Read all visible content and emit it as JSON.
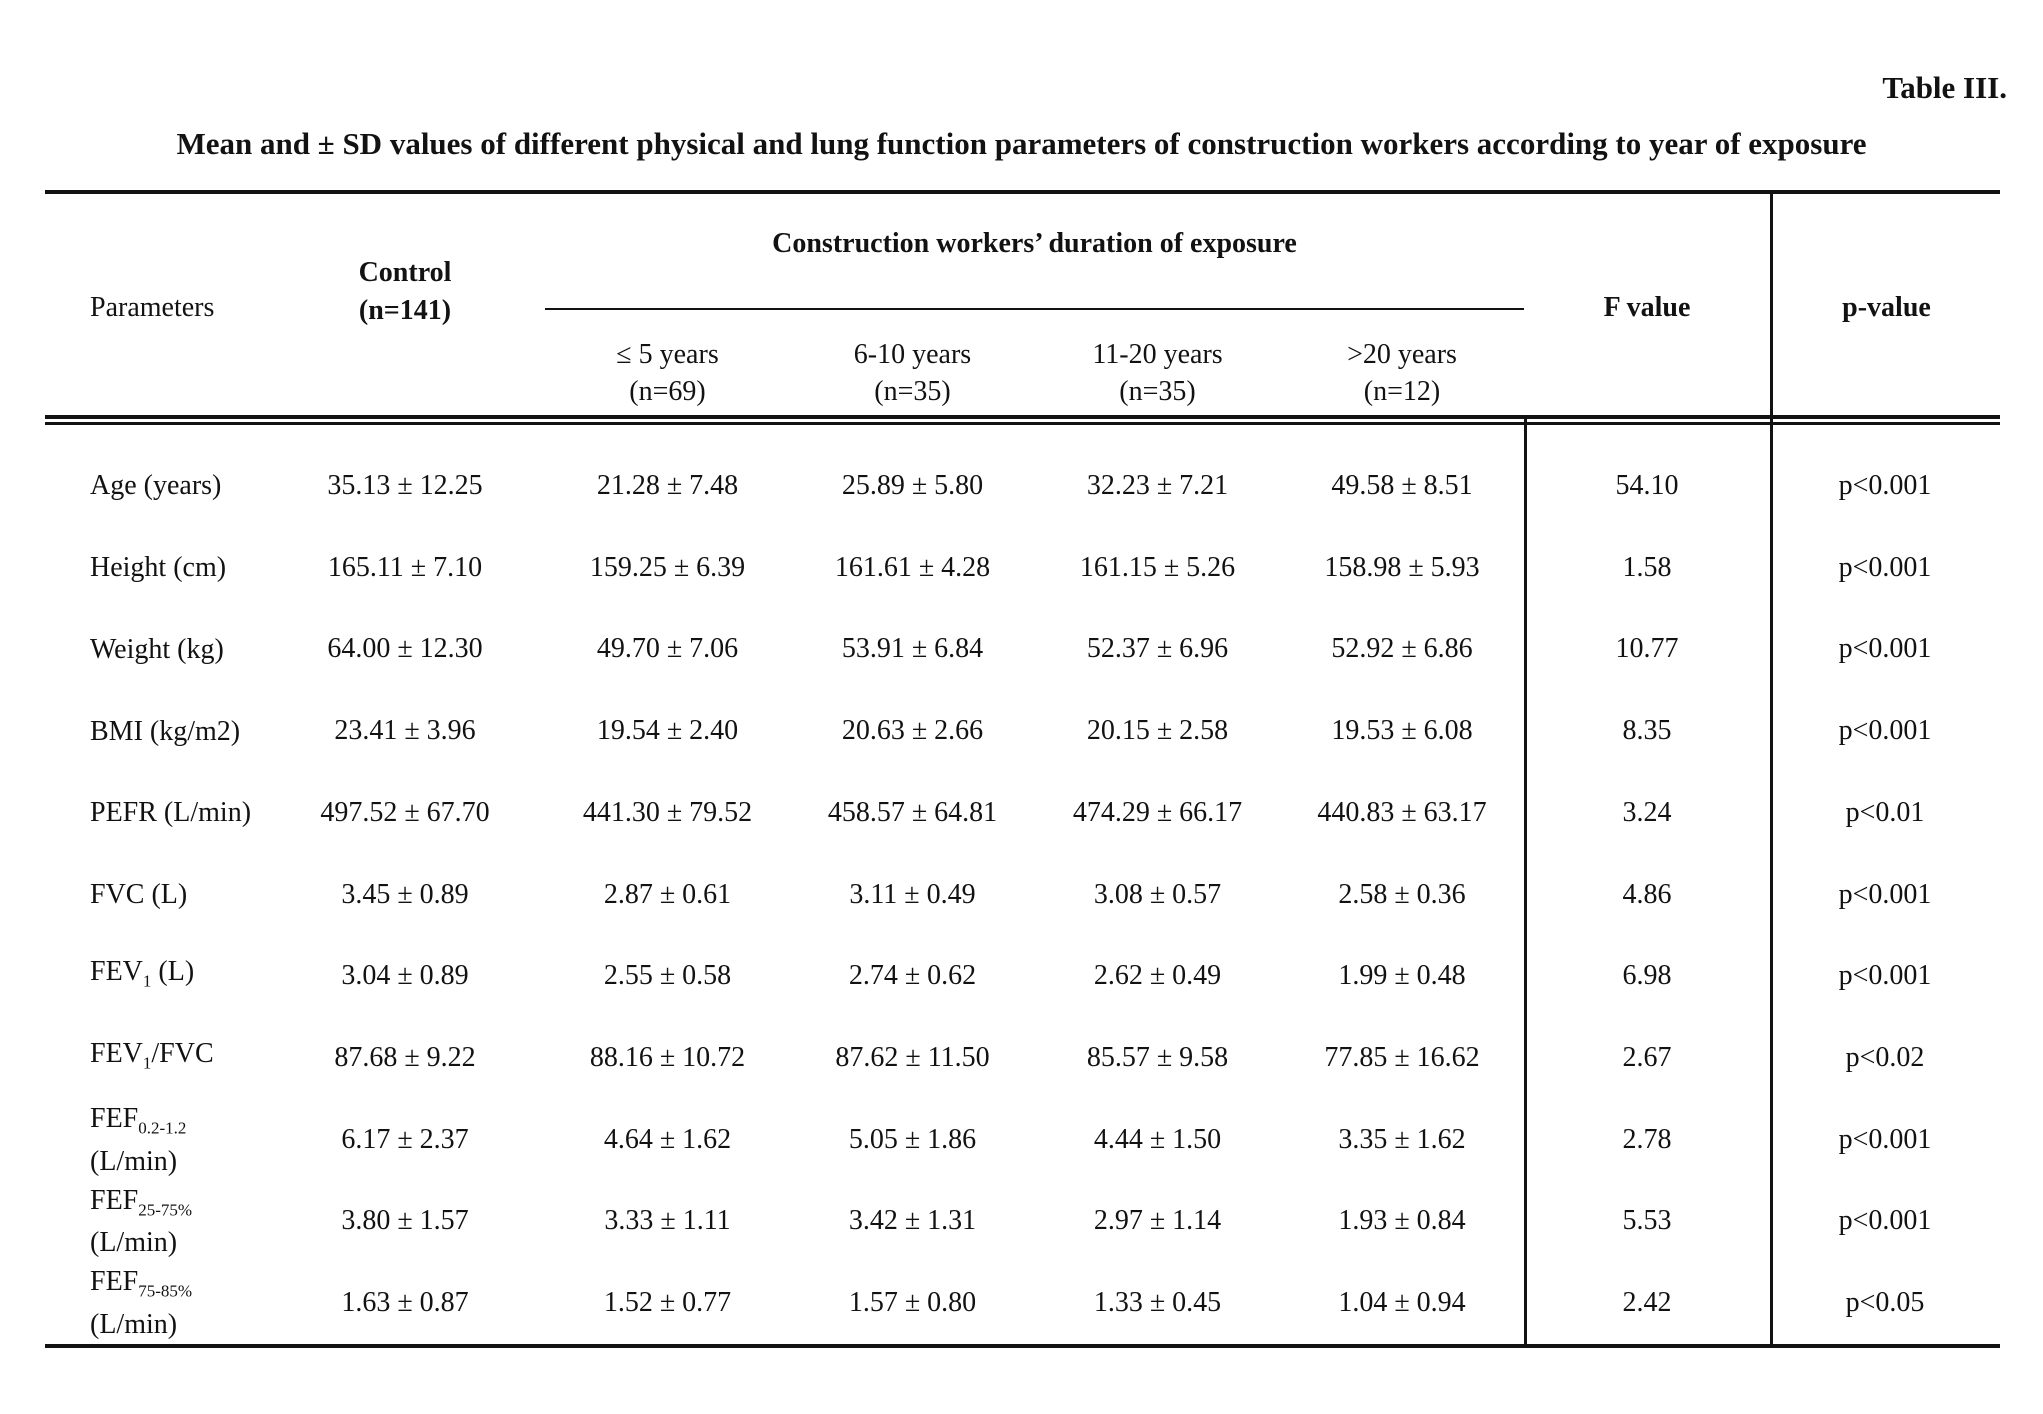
{
  "page": {
    "title": "Table III.",
    "subtitle": "Mean and ± SD values of different physical and lung function parameters of construction workers according to year of exposure"
  },
  "table": {
    "header": {
      "parameters": "Parameters",
      "control_line1": "Control",
      "control_line2": "(n=141)",
      "spanner": "Construction workers’ duration of exposure",
      "groups": [
        {
          "line1": "≤ 5 years",
          "line2": "(n=69)"
        },
        {
          "line1": "6-10 years",
          "line2": "(n=35)"
        },
        {
          "line1": "11-20 years",
          "line2": "(n=35)"
        },
        {
          "line1": ">20 years",
          "line2": "(n=12)"
        }
      ],
      "f_value": "F value",
      "p_value": "p-value"
    },
    "rows": [
      {
        "param": {
          "pre": "Age (years)",
          "sub": "",
          "post": "",
          "line2": ""
        },
        "control": "35.13 ± 12.25",
        "groups": [
          "21.28 ± 7.48",
          "25.89 ± 5.80",
          "32.23 ± 7.21",
          "49.58 ± 8.51"
        ],
        "f": "54.10",
        "p": "p<0.001"
      },
      {
        "param": {
          "pre": "Height (cm)",
          "sub": "",
          "post": "",
          "line2": ""
        },
        "control": "165.11 ± 7.10",
        "groups": [
          "159.25 ± 6.39",
          "161.61 ± 4.28",
          "161.15 ± 5.26",
          "158.98 ± 5.93"
        ],
        "f": "1.58",
        "p": "p<0.001"
      },
      {
        "param": {
          "pre": "Weight (kg)",
          "sub": "",
          "post": "",
          "line2": ""
        },
        "control": "64.00 ± 12.30",
        "groups": [
          "49.70 ± 7.06",
          "53.91 ± 6.84",
          "52.37 ± 6.96",
          "52.92 ± 6.86"
        ],
        "f": "10.77",
        "p": "p<0.001"
      },
      {
        "param": {
          "pre": "BMI (kg/m2)",
          "sub": "",
          "post": "",
          "line2": ""
        },
        "control": "23.41 ± 3.96",
        "groups": [
          "19.54 ± 2.40",
          "20.63 ± 2.66",
          "20.15 ± 2.58",
          "19.53 ± 6.08"
        ],
        "f": "8.35",
        "p": "p<0.001"
      },
      {
        "param": {
          "pre": "PEFR (L/min)",
          "sub": "",
          "post": "",
          "line2": ""
        },
        "control": "497.52 ± 67.70",
        "groups": [
          "441.30 ± 79.52",
          "458.57 ± 64.81",
          "474.29 ± 66.17",
          "440.83 ± 63.17"
        ],
        "f": "3.24",
        "p": "p<0.01"
      },
      {
        "param": {
          "pre": "FVC (L)",
          "sub": "",
          "post": "",
          "line2": ""
        },
        "control": "3.45 ± 0.89",
        "groups": [
          "2.87 ± 0.61",
          "3.11 ± 0.49",
          "3.08 ± 0.57",
          "2.58 ± 0.36"
        ],
        "f": "4.86",
        "p": "p<0.001"
      },
      {
        "param": {
          "pre": "FEV",
          "sub": "1",
          "post": " (L)",
          "line2": ""
        },
        "control": "3.04 ± 0.89",
        "groups": [
          "2.55 ± 0.58",
          "2.74 ± 0.62",
          "2.62 ± 0.49",
          "1.99 ± 0.48"
        ],
        "f": "6.98",
        "p": "p<0.001"
      },
      {
        "param": {
          "pre": "FEV",
          "sub": "1",
          "post": "/FVC",
          "line2": ""
        },
        "control": "87.68 ± 9.22",
        "groups": [
          "88.16 ± 10.72",
          "87.62 ± 11.50",
          "85.57 ± 9.58",
          "77.85 ± 16.62"
        ],
        "f": "2.67",
        "p": "p<0.02"
      },
      {
        "param": {
          "pre": "FEF",
          "sub": "0.2-1.2",
          "post": " (L/min)",
          "line2": ""
        },
        "control": "6.17 ± 2.37",
        "groups": [
          "4.64 ± 1.62",
          "5.05 ± 1.86",
          "4.44 ± 1.50",
          "3.35 ± 1.62"
        ],
        "f": "2.78",
        "p": "p<0.001"
      },
      {
        "param": {
          "pre": "FEF",
          "sub": "25-75%",
          "post": "",
          "line2": "(L/min)"
        },
        "control": "3.80 ± 1.57",
        "groups": [
          "3.33 ± 1.11",
          "3.42 ± 1.31",
          "2.97 ± 1.14",
          "1.93 ± 0.84"
        ],
        "f": "5.53",
        "p": "p<0.001"
      },
      {
        "param": {
          "pre": "FEF",
          "sub": "75-85%",
          "post": "",
          "line2": "(L/min)"
        },
        "control": "1.63 ± 0.87",
        "groups": [
          "1.52 ± 0.77",
          "1.57 ± 0.80",
          "1.33 ± 0.45",
          "1.04 ± 0.94"
        ],
        "f": "2.42",
        "p": "p<0.05"
      }
    ]
  }
}
